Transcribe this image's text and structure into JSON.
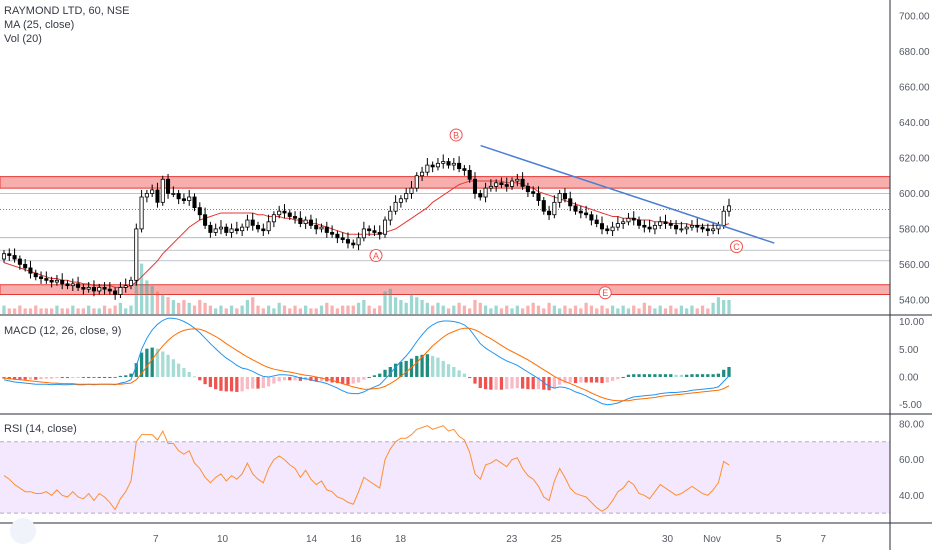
{
  "legend": {
    "symbol_title": "RAYMOND LTD, 60, NSE",
    "ma_label": "MA (25, close)",
    "vol_label": "Vol (20)",
    "macd_label": "MACD (12, 26, close, 9)",
    "rsi_label": "RSI (14, close)"
  },
  "colors": {
    "up": "#26a69a",
    "down": "#ef5350",
    "candle_body_up": "#ffffff",
    "candle_body_down": "#000000",
    "ma": "#e53935",
    "trendline": "#4a7fd4",
    "zone_fill": "#f8a0a0",
    "zone_stroke": "#e53935",
    "macd_line": "#2196f3",
    "signal_line": "#ff6d00",
    "rsi_line": "#ff8f33",
    "rsi_band": "#f3e8fd"
  },
  "price_axis": {
    "ticks": [
      "700.00",
      "680.00",
      "660.00",
      "640.00",
      "620.00",
      "600.00",
      "580.00",
      "560.00",
      "540.00"
    ],
    "ylim": [
      532,
      708
    ]
  },
  "macd_axis": {
    "ticks": [
      "10.00",
      "5.00",
      "0.00",
      "-5.00"
    ],
    "ylim": [
      -6.5,
      11
    ]
  },
  "rsi_axis": {
    "ticks": [
      "80.00",
      "60.00",
      "40.00"
    ],
    "ylim": [
      25,
      85
    ]
  },
  "x_axis": {
    "ticks": [
      "7",
      "10",
      "14",
      "16",
      "18",
      "23",
      "25",
      "30",
      "Nov",
      "5",
      "7"
    ],
    "tick_positions": [
      7,
      10,
      14,
      16,
      18,
      23,
      25,
      30,
      32,
      35,
      37
    ]
  },
  "annotations": [
    {
      "label": "A",
      "x": 16.9,
      "price": 565
    },
    {
      "label": "B",
      "x": 20.5,
      "price": 633
    },
    {
      "label": "C",
      "x": 33.1,
      "price": 570
    },
    {
      "label": "E",
      "x": 27.2,
      "price": 544
    }
  ],
  "zones": [
    {
      "from": 604,
      "to": 608
    },
    {
      "from": 544,
      "to": 547
    }
  ],
  "trendline": {
    "x1": 21.6,
    "y1": 627,
    "x2": 34.8,
    "y2": 572
  },
  "chart_data": {
    "type": "candlestick",
    "title": "RAYMOND LTD, 60, NSE",
    "ylim": [
      532,
      708
    ],
    "xlim": [
      0,
      40
    ],
    "series": [
      {
        "name": "price",
        "close": [
          566,
          565,
          563,
          560,
          558,
          555,
          553,
          552,
          551,
          550,
          551,
          549,
          548,
          549,
          547,
          546,
          547,
          545,
          547,
          546,
          545,
          543,
          547,
          548,
          551,
          580,
          598,
          600,
          602,
          595,
          608,
          600,
          600,
          597,
          596,
          598,
          592,
          588,
          582,
          578,
          580,
          581,
          578,
          580,
          579,
          581,
          585,
          582,
          580,
          579,
          584,
          588,
          590,
          589,
          587,
          586,
          583,
          585,
          582,
          580,
          581,
          578,
          577,
          575,
          574,
          572,
          571,
          575,
          580,
          579,
          578,
          577,
          585,
          590,
          595,
          597,
          600,
          603,
          610,
          612,
          616,
          615,
          617,
          618,
          616,
          617,
          614,
          613,
          608,
          600,
          598,
          603,
          604,
          606,
          605,
          604,
          607,
          608,
          604,
          601,
          600,
          596,
          590,
          588,
          595,
          600,
          597,
          593,
          590,
          589,
          588,
          585,
          583,
          580,
          579,
          581,
          583,
          584,
          586,
          585,
          582,
          581,
          580,
          582,
          584,
          583,
          582,
          580,
          580,
          581,
          582,
          581,
          580,
          579,
          580,
          582,
          590,
          593
        ],
        "open": [
          563,
          566,
          565,
          563,
          560,
          558,
          555,
          553,
          552,
          551,
          550,
          551,
          549,
          548,
          549,
          547,
          546,
          547,
          545,
          547,
          546,
          545,
          543,
          547,
          548,
          551,
          580,
          598,
          600,
          602,
          595,
          608,
          600,
          600,
          597,
          596,
          598,
          592,
          588,
          582,
          578,
          580,
          581,
          578,
          580,
          579,
          581,
          585,
          582,
          580,
          579,
          584,
          588,
          590,
          589,
          587,
          586,
          583,
          585,
          582,
          580,
          581,
          578,
          577,
          575,
          574,
          572,
          571,
          575,
          580,
          579,
          578,
          577,
          585,
          590,
          595,
          597,
          600,
          603,
          610,
          612,
          616,
          615,
          617,
          618,
          616,
          617,
          614,
          613,
          608,
          600,
          598,
          603,
          604,
          606,
          605,
          604,
          607,
          608,
          604,
          601,
          600,
          596,
          590,
          588,
          595,
          600,
          597,
          593,
          590,
          589,
          588,
          585,
          583,
          580,
          579,
          581,
          583,
          584,
          586,
          585,
          582,
          581,
          580,
          582,
          584,
          583,
          582,
          580,
          580,
          581,
          582,
          581,
          580,
          579,
          580,
          582,
          590
        ]
      },
      {
        "name": "MA (25, close)",
        "values": [
          561,
          560,
          559,
          558,
          557,
          556,
          555,
          554,
          553,
          552,
          552,
          551,
          551,
          550,
          550,
          549,
          549,
          548,
          548,
          548,
          548,
          547,
          547,
          547,
          548,
          550,
          553,
          556,
          559,
          562,
          566,
          569,
          572,
          575,
          578,
          581,
          583,
          585,
          586,
          587,
          588,
          589,
          589,
          589,
          589,
          589,
          589,
          589,
          588,
          588,
          587,
          587,
          587,
          586,
          586,
          585,
          585,
          584,
          583,
          583,
          582,
          581,
          580,
          579,
          578,
          577,
          577,
          577,
          577,
          577,
          577,
          577,
          578,
          579,
          580,
          582,
          584,
          586,
          588,
          590,
          592,
          595,
          597,
          599,
          601,
          603,
          605,
          606,
          607,
          607,
          607,
          607,
          607,
          607,
          607,
          606,
          606,
          606,
          605,
          604,
          603,
          601,
          600,
          599,
          598,
          597,
          596,
          595,
          594,
          593,
          592,
          591,
          590,
          589,
          588,
          587,
          587,
          586,
          586,
          586,
          585,
          585,
          585,
          584,
          584,
          584,
          583,
          583,
          583,
          583,
          582,
          582,
          582,
          582,
          582,
          582,
          582,
          583
        ]
      },
      {
        "name": "Vol (20)",
        "values": [
          3,
          2,
          2,
          3,
          2,
          2,
          3,
          2,
          2,
          2,
          3,
          2,
          2,
          3,
          2,
          2,
          3,
          2,
          2,
          3,
          2,
          3,
          4,
          2,
          3,
          25,
          18,
          12,
          10,
          8,
          7,
          6,
          5,
          4,
          5,
          4,
          3,
          5,
          4,
          3,
          2,
          3,
          2,
          3,
          2,
          3,
          5,
          6,
          3,
          2,
          3,
          2,
          4,
          3,
          2,
          3,
          2,
          3,
          2,
          2,
          3,
          4,
          3,
          2,
          3,
          3,
          3,
          4,
          5,
          3,
          2,
          3,
          8,
          9,
          6,
          5,
          4,
          7,
          6,
          5,
          4,
          3,
          4,
          3,
          2,
          3,
          4,
          3,
          2,
          5,
          4,
          3,
          2,
          3,
          2,
          3,
          2,
          3,
          2,
          3,
          4,
          3,
          2,
          4,
          3,
          2,
          3,
          2,
          3,
          2,
          4,
          3,
          2,
          3,
          2,
          3,
          2,
          3,
          2,
          3,
          2,
          4,
          3,
          2,
          3,
          2,
          3,
          2,
          3,
          2,
          3,
          2,
          3,
          2,
          4,
          6,
          5,
          5
        ]
      },
      {
        "name": "MACD",
        "values": [
          -0.5,
          -0.7,
          -0.9,
          -1.0,
          -1.1,
          -1.2,
          -1.3,
          -1.3,
          -1.3,
          -1.4,
          -1.3,
          -1.4,
          -1.4,
          -1.3,
          -1.4,
          -1.4,
          -1.3,
          -1.4,
          -1.3,
          -1.3,
          -1.3,
          -1.4,
          -1.1,
          -0.9,
          -0.5,
          2.0,
          5.0,
          7.0,
          8.5,
          9.5,
          10.2,
          10.6,
          10.6,
          10.4,
          10.0,
          9.5,
          8.8,
          8.0,
          7.0,
          6.0,
          5.1,
          4.2,
          3.4,
          2.8,
          2.1,
          1.6,
          1.4,
          1.0,
          0.5,
          0.1,
          0.0,
          0.2,
          0.4,
          0.4,
          0.3,
          0.1,
          -0.2,
          -0.3,
          -0.5,
          -0.8,
          -0.9,
          -1.2,
          -1.6,
          -2.0,
          -2.5,
          -2.9,
          -3.0,
          -3.0,
          -2.7,
          -2.2,
          -1.8,
          -1.4,
          -0.4,
          0.6,
          1.8,
          2.8,
          3.8,
          5.0,
          6.4,
          7.6,
          8.7,
          9.4,
          9.9,
          10.1,
          10.1,
          10.0,
          9.8,
          9.4,
          8.6,
          7.3,
          6.0,
          5.2,
          4.6,
          4.0,
          3.4,
          2.9,
          2.5,
          2.1,
          1.5,
          0.9,
          0.3,
          -0.3,
          -1.0,
          -1.7,
          -2.0,
          -1.8,
          -1.9,
          -2.2,
          -2.7,
          -3.0,
          -3.4,
          -3.9,
          -4.3,
          -4.8,
          -5.0,
          -4.9,
          -4.7,
          -4.3,
          -3.9,
          -3.6,
          -3.5,
          -3.4,
          -3.3,
          -3.2,
          -3.0,
          -2.9,
          -2.8,
          -2.8,
          -2.7,
          -2.6,
          -2.4,
          -2.3,
          -2.2,
          -2.1,
          -2.0,
          -1.8,
          -0.8,
          0.2
        ]
      },
      {
        "name": "Signal",
        "values": [
          -0.2,
          -0.3,
          -0.4,
          -0.5,
          -0.6,
          -0.7,
          -0.8,
          -0.9,
          -1.0,
          -1.1,
          -1.1,
          -1.2,
          -1.2,
          -1.2,
          -1.3,
          -1.3,
          -1.3,
          -1.3,
          -1.3,
          -1.3,
          -1.3,
          -1.3,
          -1.3,
          -1.2,
          -1.1,
          -0.5,
          0.6,
          1.9,
          3.2,
          4.4,
          5.6,
          6.6,
          7.4,
          8.0,
          8.4,
          8.6,
          8.7,
          8.6,
          8.3,
          7.8,
          7.3,
          6.7,
          6.0,
          5.4,
          4.8,
          4.2,
          3.6,
          3.1,
          2.6,
          2.1,
          1.7,
          1.4,
          1.2,
          1.0,
          0.9,
          0.7,
          0.5,
          0.3,
          0.2,
          0.0,
          -0.2,
          -0.4,
          -0.6,
          -0.9,
          -1.2,
          -1.5,
          -1.8,
          -2.0,
          -2.2,
          -2.2,
          -2.1,
          -2.0,
          -1.7,
          -1.2,
          -0.6,
          0.1,
          0.9,
          1.7,
          2.6,
          3.6,
          4.6,
          5.6,
          6.4,
          7.2,
          7.8,
          8.2,
          8.6,
          8.8,
          8.8,
          8.5,
          8.0,
          7.4,
          6.9,
          6.3,
          5.7,
          5.1,
          4.6,
          4.1,
          3.6,
          3.1,
          2.5,
          1.9,
          1.3,
          0.7,
          0.1,
          -0.4,
          -0.8,
          -1.2,
          -1.6,
          -2.0,
          -2.4,
          -2.9,
          -3.3,
          -3.7,
          -4.0,
          -4.2,
          -4.3,
          -4.3,
          -4.3,
          -4.1,
          -4.0,
          -3.9,
          -3.8,
          -3.7,
          -3.5,
          -3.4,
          -3.3,
          -3.2,
          -3.1,
          -3.0,
          -2.9,
          -2.8,
          -2.7,
          -2.6,
          -2.5,
          -2.4,
          -2.1,
          -1.6
        ]
      },
      {
        "name": "RSI (14, close)",
        "values": [
          51,
          49,
          46,
          44,
          42,
          42,
          41,
          41,
          42,
          40,
          43,
          40,
          39,
          42,
          39,
          38,
          41,
          37,
          41,
          39,
          36,
          32,
          38,
          42,
          48,
          70,
          74,
          74,
          74,
          71,
          76,
          69,
          69,
          65,
          63,
          65,
          58,
          55,
          50,
          47,
          50,
          52,
          48,
          51,
          49,
          52,
          58,
          52,
          49,
          47,
          55,
          60,
          62,
          60,
          57,
          55,
          50,
          54,
          49,
          46,
          48,
          43,
          42,
          39,
          38,
          36,
          35,
          42,
          50,
          48,
          46,
          44,
          60,
          66,
          70,
          72,
          72,
          74,
          77,
          78,
          79,
          77,
          78,
          79,
          76,
          77,
          73,
          71,
          64,
          52,
          49,
          57,
          58,
          60,
          58,
          56,
          60,
          61,
          55,
          51,
          49,
          45,
          39,
          37,
          48,
          55,
          50,
          44,
          41,
          40,
          39,
          36,
          33,
          31,
          33,
          37,
          42,
          44,
          48,
          46,
          41,
          40,
          38,
          42,
          46,
          44,
          42,
          40,
          41,
          43,
          45,
          43,
          41,
          40,
          43,
          47,
          59,
          57
        ]
      }
    ]
  }
}
